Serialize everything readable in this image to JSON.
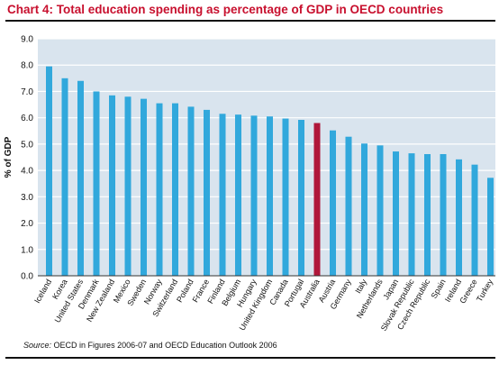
{
  "chart_data": {
    "type": "bar",
    "title": "Chart 4: Total education spending as percentage of GDP in OECD countries",
    "ylabel": "% of GDP",
    "xlabel": "",
    "ylim": [
      0,
      9
    ],
    "yticks": [
      "0.0",
      "1.0",
      "2.0",
      "3.0",
      "4.0",
      "5.0",
      "6.0",
      "7.0",
      "8.0",
      "9.0"
    ],
    "grid": true,
    "categories": [
      "Iceland",
      "Korea",
      "United States",
      "Denmark",
      "New Zealand",
      "Mexico",
      "Sweden",
      "Norway",
      "Switzerland",
      "Poland",
      "France",
      "Finland",
      "Belgium",
      "Hungary",
      "United Kingdom",
      "Canada",
      "Portugal",
      "Australia",
      "Austria",
      "Germany",
      "Italy",
      "Netherlands",
      "Japan",
      "Slovak Republic",
      "Czech Republic",
      "Spain",
      "Ireland",
      "Greece",
      "Turkey"
    ],
    "values": [
      7.95,
      7.5,
      7.4,
      7.0,
      6.85,
      6.8,
      6.72,
      6.55,
      6.55,
      6.42,
      6.3,
      6.15,
      6.12,
      6.08,
      6.05,
      5.97,
      5.92,
      5.8,
      5.52,
      5.28,
      5.02,
      4.95,
      4.72,
      4.65,
      4.62,
      4.62,
      4.42,
      4.22,
      3.72
    ],
    "highlight": "Australia",
    "colors": {
      "plot_bg": "#d9e4ee",
      "bar": "#31a8dc",
      "highlight": "#b0173a",
      "grid": "#ffffff"
    }
  },
  "source": {
    "label": "Source:",
    "text": "OECD in Figures 2006-07 and OECD Education Outlook 2006"
  }
}
